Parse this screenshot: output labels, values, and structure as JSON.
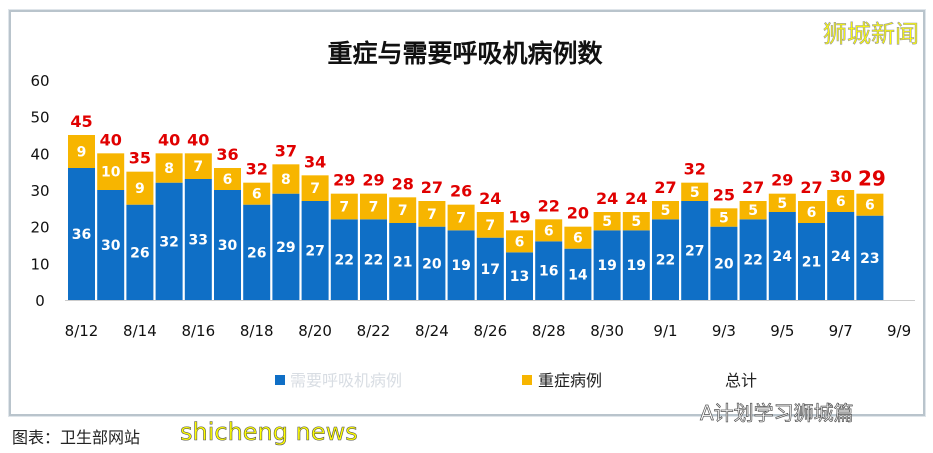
{
  "chart_data": {
    "type": "bar",
    "stacked": true,
    "title": "重症与需要呼吸机病例数",
    "ylim": [
      0,
      60
    ],
    "yticks": [
      0,
      10,
      20,
      30,
      40,
      50,
      60
    ],
    "xticks": [
      "8/12",
      "8/14",
      "8/16",
      "8/18",
      "8/20",
      "8/22",
      "8/24",
      "8/26",
      "8/28",
      "8/30",
      "9/1",
      "9/3",
      "9/5",
      "9/7",
      "9/9"
    ],
    "categories": [
      "8/12",
      "8/13",
      "8/14",
      "8/15",
      "8/16",
      "8/17",
      "8/18",
      "8/19",
      "8/20",
      "8/21",
      "8/22",
      "8/23",
      "8/24",
      "8/25",
      "8/26",
      "8/27",
      "8/28",
      "8/29",
      "8/30",
      "8/31",
      "9/1",
      "9/2",
      "9/3",
      "9/4",
      "9/5",
      "9/6",
      "9/7",
      "9/8"
    ],
    "series": [
      {
        "name": "需要呼吸机病例",
        "color": "#0f6fc6",
        "values": [
          36,
          30,
          26,
          32,
          33,
          30,
          26,
          29,
          27,
          22,
          22,
          21,
          20,
          19,
          17,
          13,
          16,
          14,
          19,
          19,
          22,
          27,
          20,
          22,
          24,
          21,
          24,
          23
        ]
      },
      {
        "name": "重症病例",
        "color": "#f7b500",
        "values": [
          9,
          10,
          9,
          8,
          7,
          6,
          6,
          8,
          7,
          7,
          7,
          7,
          7,
          7,
          7,
          6,
          6,
          6,
          5,
          5,
          5,
          5,
          5,
          5,
          5,
          6,
          6,
          6
        ]
      }
    ],
    "totals": {
      "name": "总计",
      "color": "#e00000",
      "values": [
        45,
        40,
        35,
        40,
        40,
        36,
        32,
        37,
        34,
        29,
        29,
        28,
        27,
        26,
        24,
        19,
        22,
        20,
        24,
        24,
        27,
        32,
        25,
        27,
        29,
        27,
        30,
        29
      ]
    },
    "legend": "bottom"
  },
  "watermark": "狮城新闻",
  "credit": "A计划学习狮城篇",
  "caption": "图表：卫生部网站",
  "overlay_watermark": "shicheng news"
}
